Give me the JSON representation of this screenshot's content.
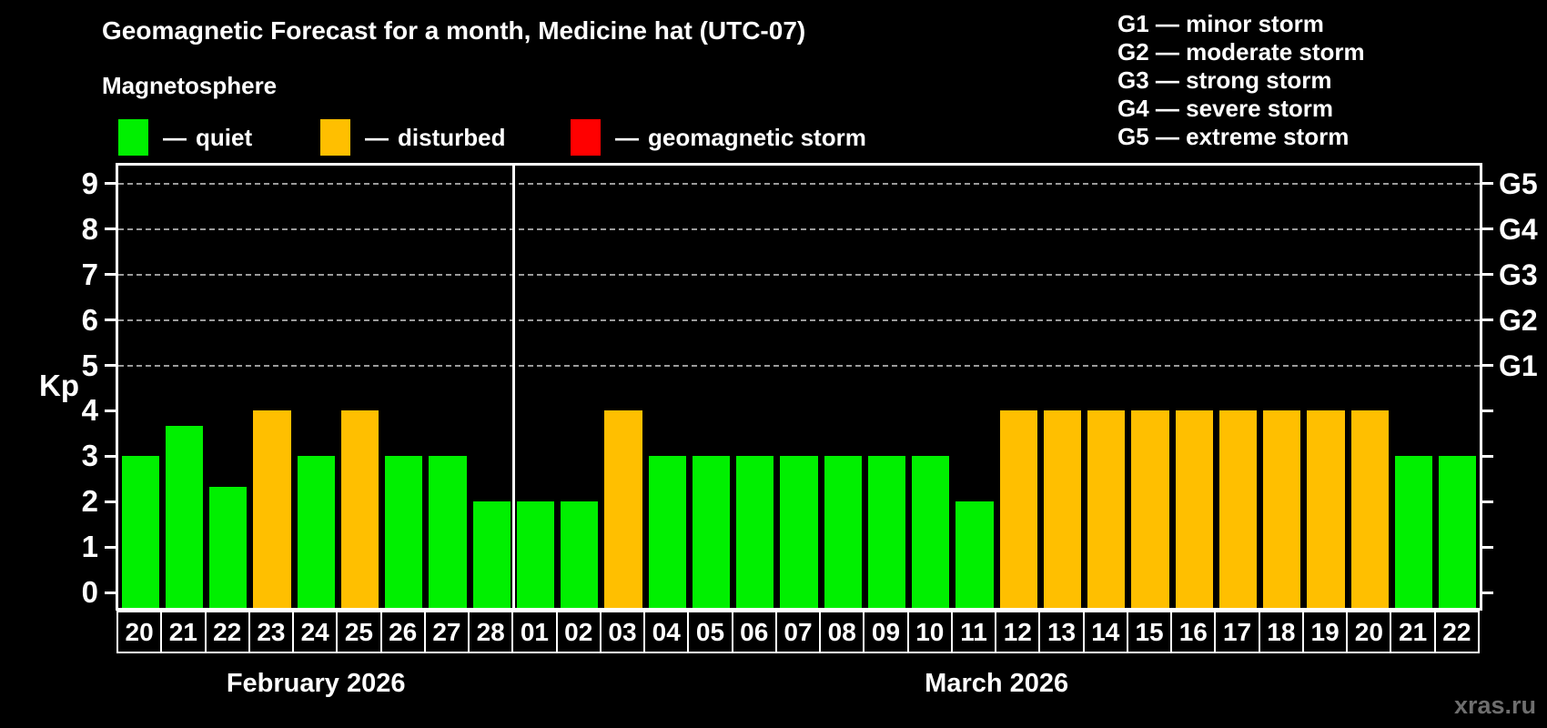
{
  "header": {
    "title": "Geomagnetic Forecast for a month, Medicine hat (UTC-07)",
    "subtitle": "Magnetosphere"
  },
  "legend": {
    "items": [
      {
        "prefix": "—",
        "label": "quiet",
        "color": "#00f000"
      },
      {
        "prefix": "—",
        "label": "disturbed",
        "color": "#ffbf00"
      },
      {
        "prefix": "—",
        "label": "geomagnetic storm",
        "color": "#ff0000"
      }
    ]
  },
  "storm_scale": {
    "lines": [
      "G1 — minor storm",
      "G2 — moderate storm",
      "G3 — strong storm",
      "G4 — severe storm",
      "G5 — extreme storm"
    ]
  },
  "chart_data": {
    "type": "bar",
    "title": "Geomagnetic Forecast for a month, Medicine hat (UTC-07)",
    "ylabel": "Kp",
    "ylim": [
      0,
      9.4
    ],
    "yticks": [
      0,
      1,
      2,
      3,
      4,
      5,
      6,
      7,
      8,
      9
    ],
    "gridlines_at": [
      5,
      6,
      7,
      8,
      9
    ],
    "grid_style": "dashed horizontal lines at Kp 5-9 only",
    "right_axis": [
      {
        "kp": 5,
        "label": "G1"
      },
      {
        "kp": 6,
        "label": "G2"
      },
      {
        "kp": 7,
        "label": "G3"
      },
      {
        "kp": 8,
        "label": "G4"
      },
      {
        "kp": 9,
        "label": "G5"
      }
    ],
    "status_colors": {
      "quiet": "#00f000",
      "disturbed": "#ffbf00",
      "storm": "#ff0000"
    },
    "months": [
      {
        "label": "February 2026",
        "bars": [
          {
            "day": "20",
            "kp": 3,
            "status": "quiet"
          },
          {
            "day": "21",
            "kp": 3.67,
            "status": "quiet"
          },
          {
            "day": "22",
            "kp": 2.33,
            "status": "quiet"
          },
          {
            "day": "23",
            "kp": 4,
            "status": "disturbed"
          },
          {
            "day": "24",
            "kp": 3,
            "status": "quiet"
          },
          {
            "day": "25",
            "kp": 4,
            "status": "disturbed"
          },
          {
            "day": "26",
            "kp": 3,
            "status": "quiet"
          },
          {
            "day": "27",
            "kp": 3,
            "status": "quiet"
          },
          {
            "day": "28",
            "kp": 2,
            "status": "quiet"
          }
        ]
      },
      {
        "label": "March 2026",
        "bars": [
          {
            "day": "01",
            "kp": 2,
            "status": "quiet"
          },
          {
            "day": "02",
            "kp": 2,
            "status": "quiet"
          },
          {
            "day": "03",
            "kp": 4,
            "status": "disturbed"
          },
          {
            "day": "04",
            "kp": 3,
            "status": "quiet"
          },
          {
            "day": "05",
            "kp": 3,
            "status": "quiet"
          },
          {
            "day": "06",
            "kp": 3,
            "status": "quiet"
          },
          {
            "day": "07",
            "kp": 3,
            "status": "quiet"
          },
          {
            "day": "08",
            "kp": 3,
            "status": "quiet"
          },
          {
            "day": "09",
            "kp": 3,
            "status": "quiet"
          },
          {
            "day": "10",
            "kp": 3,
            "status": "quiet"
          },
          {
            "day": "11",
            "kp": 2,
            "status": "quiet"
          },
          {
            "day": "12",
            "kp": 4,
            "status": "disturbed"
          },
          {
            "day": "13",
            "kp": 4,
            "status": "disturbed"
          },
          {
            "day": "14",
            "kp": 4,
            "status": "disturbed"
          },
          {
            "day": "15",
            "kp": 4,
            "status": "disturbed"
          },
          {
            "day": "16",
            "kp": 4,
            "status": "disturbed"
          },
          {
            "day": "17",
            "kp": 4,
            "status": "disturbed"
          },
          {
            "day": "18",
            "kp": 4,
            "status": "disturbed"
          },
          {
            "day": "19",
            "kp": 4,
            "status": "disturbed"
          },
          {
            "day": "20",
            "kp": 4,
            "status": "disturbed"
          },
          {
            "day": "21",
            "kp": 3,
            "status": "quiet"
          },
          {
            "day": "22",
            "kp": 3,
            "status": "quiet"
          }
        ]
      }
    ]
  },
  "watermark": "xras.ru"
}
